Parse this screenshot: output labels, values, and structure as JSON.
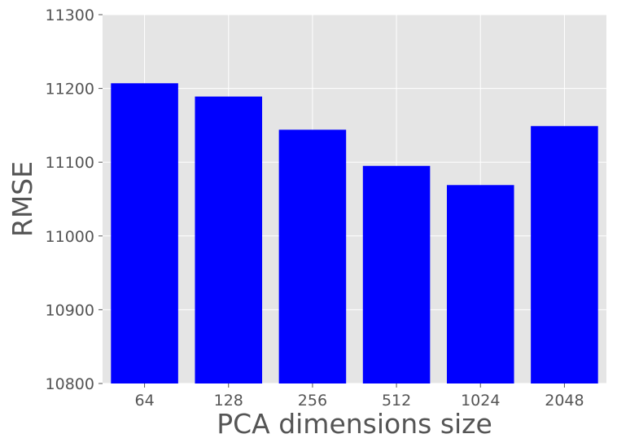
{
  "chart_data": {
    "type": "bar",
    "title": "",
    "xlabel": "PCA dimensions size",
    "ylabel": "RMSE",
    "categories": [
      "64",
      "128",
      "256",
      "512",
      "1024",
      "2048"
    ],
    "values": [
      11207,
      11189,
      11144,
      11095,
      11069,
      11149
    ],
    "ylim": [
      10800,
      11300
    ],
    "yticks": [
      "10800",
      "10900",
      "11000",
      "11100",
      "11200",
      "11300"
    ],
    "grid": true,
    "bar_color": "#0000ff",
    "plot_background": "#e5e5e5",
    "grid_color": "#ffffff"
  }
}
